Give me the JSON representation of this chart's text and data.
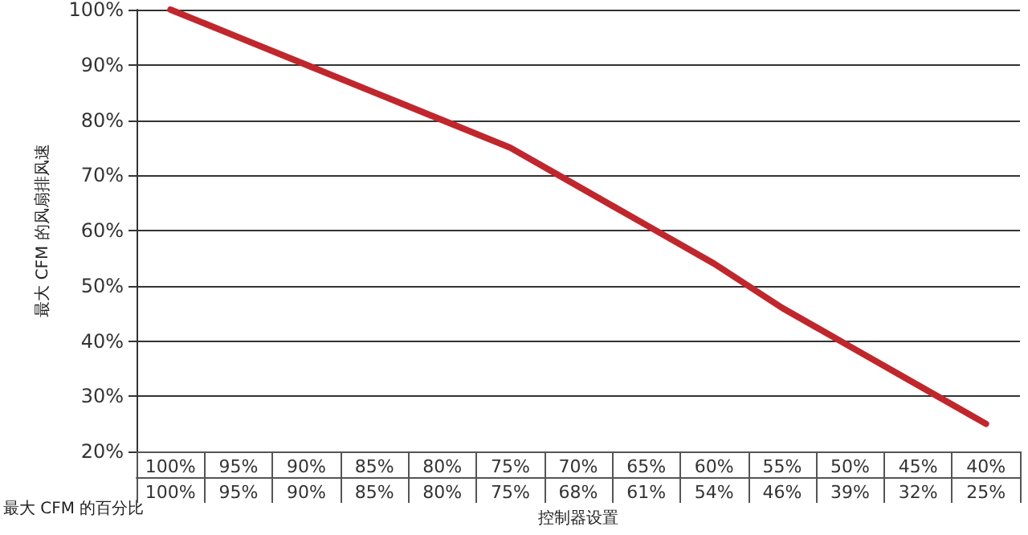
{
  "chart_data": {
    "type": "line",
    "xlabel": "控制器设置",
    "ylabel": "最大 CFM 的风扇排风速",
    "categories": [
      "100%",
      "95%",
      "90%",
      "85%",
      "80%",
      "75%",
      "70%",
      "65%",
      "60%",
      "55%",
      "50%",
      "45%",
      "40%"
    ],
    "values": [
      100,
      95,
      90,
      85,
      80,
      75,
      68,
      61,
      54,
      46,
      39,
      32,
      25
    ],
    "value_labels": [
      "100%",
      "95%",
      "90%",
      "85%",
      "80%",
      "75%",
      "68%",
      "61%",
      "54%",
      "46%",
      "39%",
      "32%",
      "25%"
    ],
    "color": "#c0272d",
    "marker": "none",
    "grid": "y",
    "ylim": [
      20,
      100
    ],
    "yticks": [
      {
        "value": 20,
        "label": "20%"
      },
      {
        "value": 30,
        "label": "30%"
      },
      {
        "value": 40,
        "label": "40%"
      },
      {
        "value": 50,
        "label": "50%"
      },
      {
        "value": 60,
        "label": "60%"
      },
      {
        "value": 70,
        "label": "70%"
      },
      {
        "value": 80,
        "label": "80%"
      },
      {
        "value": 90,
        "label": "90%"
      },
      {
        "value": 100,
        "label": "100%"
      }
    ],
    "annotations": [
      "最大 CFM 的百分比"
    ]
  }
}
